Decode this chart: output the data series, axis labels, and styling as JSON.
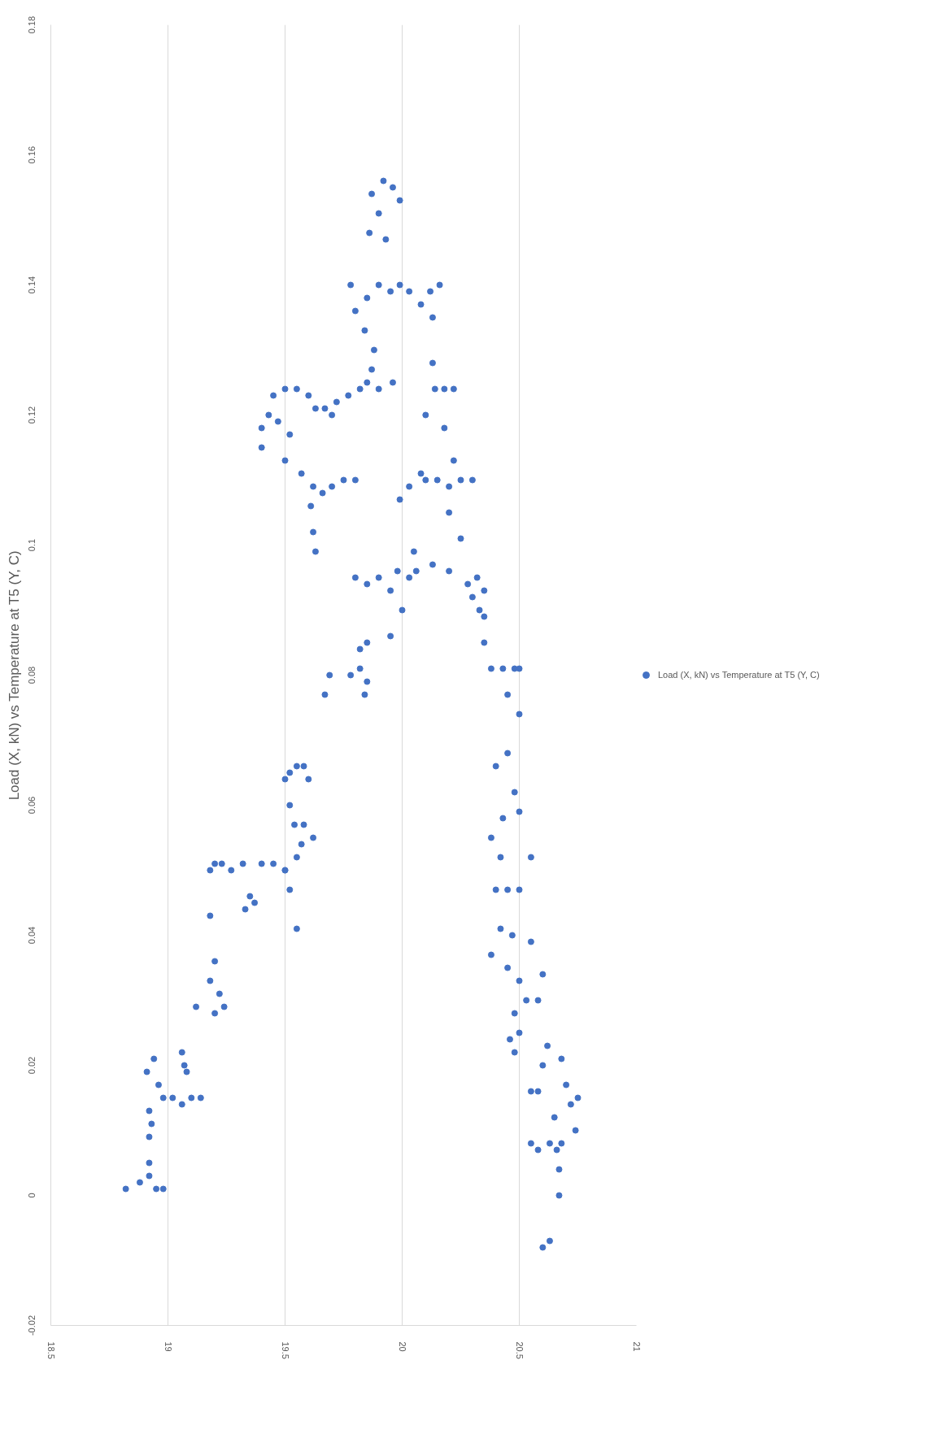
{
  "chart_data": {
    "type": "scatter",
    "title": "Load (X, kN) vs Temperature at T5 (Y, C)",
    "xlim": [
      18.5,
      21
    ],
    "xticks": [
      18.5,
      19,
      19.5,
      20,
      20.5,
      21
    ],
    "ylim": [
      -0.02,
      0.18
    ],
    "yticks": [
      -0.02,
      0,
      0.02,
      0.04,
      0.06,
      0.08,
      0.1,
      0.12,
      0.14,
      0.16,
      0.18
    ],
    "grid": "x",
    "legend": "right",
    "marker": "circle",
    "series": [
      {
        "name": "Load (X, kN) vs Temperature at T5 (Y, C)",
        "color": "#4472c4",
        "x": [
          18.82,
          18.88,
          18.92,
          18.95,
          18.98,
          18.92,
          18.91,
          18.94,
          18.96,
          18.98,
          18.93,
          18.92,
          18.92,
          19.02,
          19.06,
          19.1,
          19.14,
          19.06,
          19.07,
          19.08,
          19.12,
          19.18,
          19.2,
          19.22,
          19.24,
          19.2,
          19.18,
          19.2,
          19.23,
          19.18,
          19.27,
          19.32,
          19.35,
          19.33,
          19.37,
          19.4,
          19.45,
          19.5,
          19.5,
          19.52,
          19.55,
          19.58,
          19.6,
          19.52,
          19.54,
          19.58,
          19.62,
          19.5,
          19.52,
          19.55,
          19.57,
          19.55,
          19.67,
          19.69,
          19.78,
          19.82,
          19.85,
          19.84,
          19.82,
          19.85,
          19.8,
          19.85,
          19.9,
          19.95,
          19.98,
          20.03,
          20.06,
          20.0,
          19.95,
          20.05,
          19.99,
          20.03,
          20.08,
          20.13,
          20.1,
          20.15,
          20.2,
          20.22,
          20.25,
          20.3,
          20.2,
          20.25,
          20.2,
          20.28,
          20.32,
          20.35,
          20.3,
          20.33,
          20.1,
          20.14,
          20.18,
          20.22,
          20.18,
          20.13,
          20.08,
          20.12,
          20.16,
          20.13,
          19.87,
          19.92,
          19.96,
          19.99,
          19.9,
          19.93,
          19.86,
          19.78,
          19.85,
          19.9,
          19.95,
          19.99,
          20.03,
          19.8,
          19.84,
          19.88,
          19.87,
          19.85,
          19.9,
          19.96,
          19.72,
          19.77,
          19.82,
          19.7,
          19.4,
          19.45,
          19.5,
          19.55,
          19.6,
          19.43,
          19.47,
          19.4,
          19.52,
          19.63,
          19.67,
          19.5,
          19.57,
          19.62,
          19.66,
          19.7,
          19.75,
          19.8,
          19.62,
          19.63,
          19.61,
          20.38,
          20.43,
          20.48,
          20.5,
          20.45,
          20.5,
          20.45,
          20.4,
          20.48,
          20.43,
          20.5,
          20.38,
          20.42,
          20.45,
          20.4,
          20.5,
          20.42,
          20.47,
          20.38,
          20.55,
          20.45,
          20.5,
          20.53,
          20.48,
          20.46,
          20.5,
          20.55,
          20.58,
          20.6,
          20.48,
          20.55,
          20.58,
          20.6,
          20.55,
          20.58,
          20.63,
          20.66,
          20.68,
          20.72,
          20.75,
          20.7,
          20.68,
          20.62,
          20.65,
          20.74,
          20.67,
          20.67,
          20.6,
          20.63,
          20.35,
          20.35
        ],
        "values": [
          0.001,
          0.002,
          0.003,
          0.001,
          0.001,
          0.005,
          0.019,
          0.021,
          0.017,
          0.015,
          0.011,
          0.009,
          0.013,
          0.015,
          0.014,
          0.015,
          0.015,
          0.022,
          0.02,
          0.019,
          0.029,
          0.033,
          0.036,
          0.031,
          0.029,
          0.028,
          0.05,
          0.051,
          0.051,
          0.043,
          0.05,
          0.051,
          0.046,
          0.044,
          0.045,
          0.051,
          0.051,
          0.05,
          0.064,
          0.065,
          0.066,
          0.066,
          0.064,
          0.06,
          0.057,
          0.057,
          0.055,
          0.05,
          0.047,
          0.052,
          0.054,
          0.041,
          0.077,
          0.08,
          0.08,
          0.081,
          0.079,
          0.077,
          0.084,
          0.085,
          0.095,
          0.094,
          0.095,
          0.093,
          0.096,
          0.095,
          0.096,
          0.09,
          0.086,
          0.099,
          0.107,
          0.109,
          0.111,
          0.097,
          0.11,
          0.11,
          0.109,
          0.113,
          0.11,
          0.11,
          0.105,
          0.101,
          0.096,
          0.094,
          0.095,
          0.093,
          0.092,
          0.09,
          0.12,
          0.124,
          0.124,
          0.124,
          0.118,
          0.128,
          0.137,
          0.139,
          0.14,
          0.135,
          0.154,
          0.156,
          0.155,
          0.153,
          0.151,
          0.147,
          0.148,
          0.14,
          0.138,
          0.14,
          0.139,
          0.14,
          0.139,
          0.136,
          0.133,
          0.13,
          0.127,
          0.125,
          0.124,
          0.125,
          0.122,
          0.123,
          0.124,
          0.12,
          0.118,
          0.123,
          0.124,
          0.124,
          0.123,
          0.12,
          0.119,
          0.115,
          0.117,
          0.121,
          0.121,
          0.113,
          0.111,
          0.109,
          0.108,
          0.109,
          0.11,
          0.11,
          0.102,
          0.099,
          0.106,
          0.081,
          0.081,
          0.081,
          0.081,
          0.077,
          0.074,
          0.068,
          0.066,
          0.062,
          0.058,
          0.059,
          0.055,
          0.052,
          0.047,
          0.047,
          0.047,
          0.041,
          0.04,
          0.037,
          0.052,
          0.035,
          0.033,
          0.03,
          0.028,
          0.024,
          0.025,
          0.039,
          0.03,
          0.034,
          0.022,
          0.016,
          0.016,
          0.02,
          0.008,
          0.007,
          0.008,
          0.007,
          0.008,
          0.014,
          0.015,
          0.017,
          0.021,
          0.023,
          0.012,
          0.01,
          0.004,
          0.0,
          -0.008,
          -0.007,
          0.085,
          0.089
        ]
      }
    ]
  }
}
